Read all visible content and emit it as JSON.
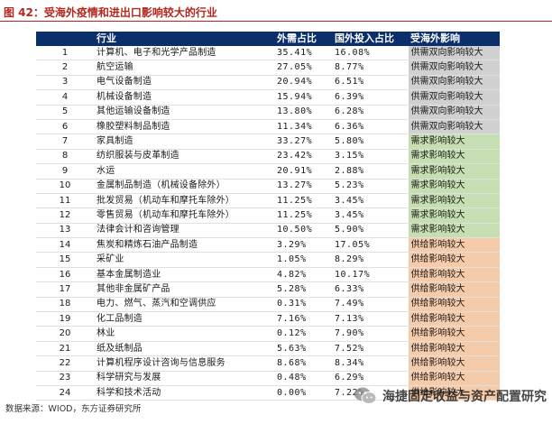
{
  "figure": {
    "title": "图 42：受海外疫情和进出口影响较大的行业",
    "source": "数据来源：WIOD，东方证券研究所",
    "watermark": "海捷固定收益与资产配置研究"
  },
  "table": {
    "headers": [
      "",
      "行业",
      "外需占比",
      "国外投入占比",
      "受海外影响"
    ],
    "rows": [
      {
        "rank": "1",
        "industry": "计算机、电子和光学产品制造",
        "ext_demand": "35.41%",
        "foreign_input": "16.08%",
        "impact": "供需双向影响较大",
        "tone": "gray"
      },
      {
        "rank": "2",
        "industry": "航空运输",
        "ext_demand": "27.05%",
        "foreign_input": "8.77%",
        "impact": "供需双向影响较大",
        "tone": "gray"
      },
      {
        "rank": "3",
        "industry": "电气设备制造",
        "ext_demand": "20.94%",
        "foreign_input": "6.51%",
        "impact": "供需双向影响较大",
        "tone": "gray"
      },
      {
        "rank": "4",
        "industry": "机械设备制造",
        "ext_demand": "15.94%",
        "foreign_input": "6.39%",
        "impact": "供需双向影响较大",
        "tone": "gray"
      },
      {
        "rank": "5",
        "industry": "其他运输设备制造",
        "ext_demand": "13.80%",
        "foreign_input": "6.28%",
        "impact": "供需双向影响较大",
        "tone": "gray"
      },
      {
        "rank": "6",
        "industry": "橡胶塑料制品制造",
        "ext_demand": "11.34%",
        "foreign_input": "6.36%",
        "impact": "供需双向影响较大",
        "tone": "gray"
      },
      {
        "rank": "7",
        "industry": "家具制造",
        "ext_demand": "33.27%",
        "foreign_input": "5.80%",
        "impact": "需求影响较大",
        "tone": "green"
      },
      {
        "rank": "8",
        "industry": "纺织服装与皮革制造",
        "ext_demand": "23.42%",
        "foreign_input": "3.15%",
        "impact": "需求影响较大",
        "tone": "green"
      },
      {
        "rank": "9",
        "industry": "水运",
        "ext_demand": "20.91%",
        "foreign_input": "2.88%",
        "impact": "需求影响较大",
        "tone": "green"
      },
      {
        "rank": "10",
        "industry": "金属制品制造（机械设备除外）",
        "ext_demand": "13.27%",
        "foreign_input": "5.23%",
        "impact": "需求影响较大",
        "tone": "green"
      },
      {
        "rank": "11",
        "industry": "批发贸易（机动车和摩托车除外）",
        "ext_demand": "11.25%",
        "foreign_input": "3.45%",
        "impact": "需求影响较大",
        "tone": "green"
      },
      {
        "rank": "12",
        "industry": "零售贸易（机动车和摩托车除外）",
        "ext_demand": "11.25%",
        "foreign_input": "3.45%",
        "impact": "需求影响较大",
        "tone": "green"
      },
      {
        "rank": "13",
        "industry": "法律会计和咨询管理",
        "ext_demand": "10.50%",
        "foreign_input": "5.90%",
        "impact": "需求影响较大",
        "tone": "green"
      },
      {
        "rank": "14",
        "industry": "焦炭和精炼石油产品制造",
        "ext_demand": "3.29%",
        "foreign_input": "17.05%",
        "impact": "供给影响较大",
        "tone": "orange"
      },
      {
        "rank": "15",
        "industry": "采矿业",
        "ext_demand": "1.05%",
        "foreign_input": "8.29%",
        "impact": "供给影响较大",
        "tone": "orange"
      },
      {
        "rank": "16",
        "industry": "基本金属制造业",
        "ext_demand": "4.82%",
        "foreign_input": "10.17%",
        "impact": "供给影响较大",
        "tone": "orange"
      },
      {
        "rank": "17",
        "industry": "其他非金属矿产品",
        "ext_demand": "5.28%",
        "foreign_input": "6.33%",
        "impact": "供给影响较大",
        "tone": "orange"
      },
      {
        "rank": "18",
        "industry": "电力、燃气、蒸汽和空调供应",
        "ext_demand": "0.31%",
        "foreign_input": "7.49%",
        "impact": "供给影响较大",
        "tone": "orange"
      },
      {
        "rank": "19",
        "industry": "化工品制造",
        "ext_demand": "7.16%",
        "foreign_input": "7.13%",
        "impact": "供给影响较大",
        "tone": "orange"
      },
      {
        "rank": "20",
        "industry": "林业",
        "ext_demand": "0.12%",
        "foreign_input": "7.90%",
        "impact": "供给影响较大",
        "tone": "orange"
      },
      {
        "rank": "21",
        "industry": "纸及纸制品",
        "ext_demand": "5.63%",
        "foreign_input": "7.52%",
        "impact": "供给影响较大",
        "tone": "orange"
      },
      {
        "rank": "22",
        "industry": "计算机程序设计咨询与信息服务",
        "ext_demand": "8.68%",
        "foreign_input": "8.34%",
        "impact": "供给影响较大",
        "tone": "orange"
      },
      {
        "rank": "23",
        "industry": "科学研究与发展",
        "ext_demand": "0.48%",
        "foreign_input": "6.29%",
        "impact": "供给影响较大",
        "tone": "orange"
      },
      {
        "rank": "24",
        "industry": "科学和技术活动",
        "ext_demand": "0.00%",
        "foreign_input": "7.22%",
        "impact": "供给影响较大",
        "tone": "orange"
      }
    ]
  }
}
